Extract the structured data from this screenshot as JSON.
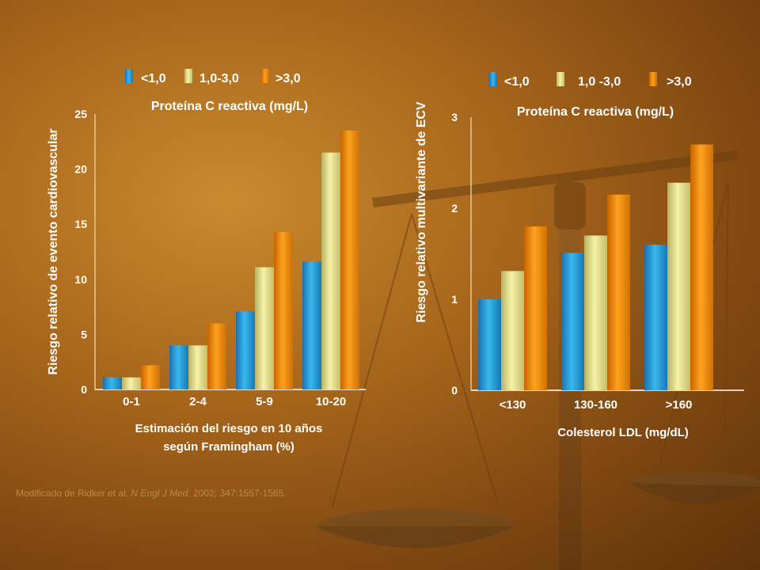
{
  "colors": {
    "blue": "#2a9ed8",
    "beige": "#e9e48c",
    "orange": "#f08a10"
  },
  "credit": {
    "prefix": "Modificado de Ridker et al. ",
    "journal": "N Engl J Med.",
    "suffix": " 2002; 347:1557-1565."
  },
  "chart_data": [
    {
      "type": "bar",
      "title": "Proteína C reactiva (mg/L)",
      "ylabel": "Riesgo relativo de evento cardiovascular",
      "xlabel_lines": [
        "Estimación del riesgo en 10 años",
        "según Framingham (%)"
      ],
      "categories": [
        "0-1",
        "2-4",
        "5-9",
        "10-20"
      ],
      "ylim": [
        0,
        25
      ],
      "yticks": [
        0,
        5,
        10,
        15,
        20,
        25
      ],
      "legend": [
        "<1,0",
        "1,0-3,0",
        ">3,0"
      ],
      "series": [
        {
          "name": "<1,0",
          "values": [
            1.1,
            4.0,
            7.1,
            11.6
          ]
        },
        {
          "name": "1,0-3,0",
          "values": [
            1.1,
            4.0,
            11.1,
            21.5
          ]
        },
        {
          "name": ">3,0",
          "values": [
            2.2,
            6.0,
            14.3,
            23.5
          ]
        }
      ]
    },
    {
      "type": "bar",
      "title": "Proteína C reactiva (mg/L)",
      "ylabel": "Riesgo relativo multivariante de ECV",
      "xlabel_lines": [
        "Colesterol LDL (mg/dL)"
      ],
      "categories": [
        "<130",
        "130-160",
        ">160"
      ],
      "ylim": [
        0,
        3
      ],
      "yticks": [
        0,
        1,
        2,
        3
      ],
      "legend": [
        "<1,0",
        "1,0 -3,0",
        ">3,0"
      ],
      "series": [
        {
          "name": "<1,0",
          "values": [
            1.0,
            1.51,
            1.6
          ]
        },
        {
          "name": "1,0 -3,0",
          "values": [
            1.31,
            1.7,
            2.28
          ]
        },
        {
          "name": ">3,0",
          "values": [
            1.8,
            2.15,
            2.7
          ]
        }
      ]
    }
  ]
}
